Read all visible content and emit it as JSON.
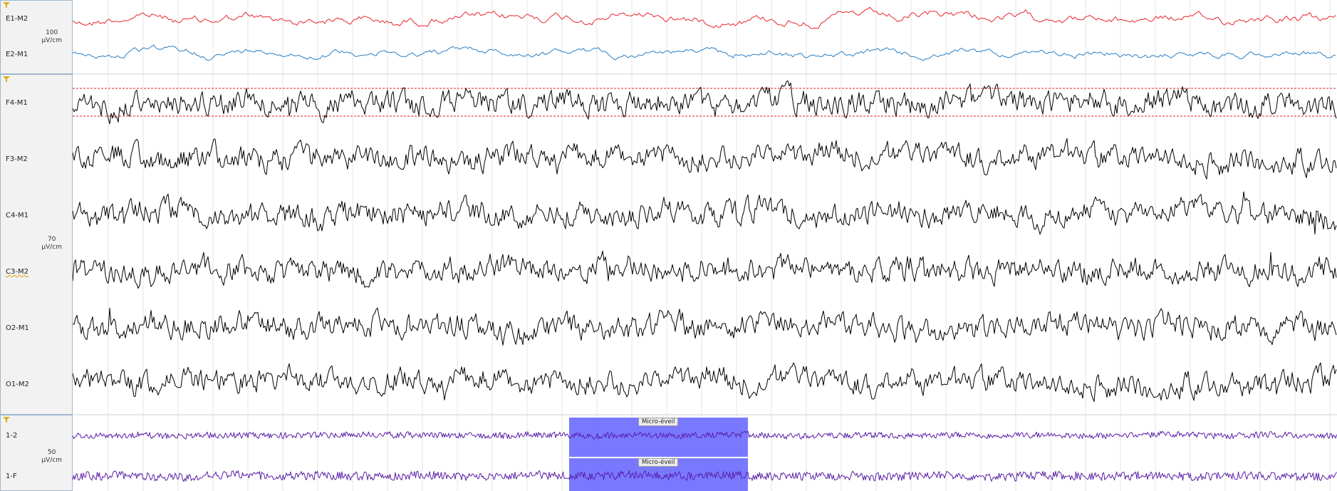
{
  "groups": [
    {
      "scale_value": "100",
      "scale_unit": "µV/cm"
    },
    {
      "scale_value": "70",
      "scale_unit": "µV/cm"
    },
    {
      "scale_value": "50",
      "scale_unit": "µV/cm"
    }
  ],
  "channels": [
    {
      "label": "E1-M2",
      "color": "#e8242c"
    },
    {
      "label": "E2-M1",
      "color": "#2b7ec2"
    },
    {
      "label": "F4-M1",
      "color": "#000000"
    },
    {
      "label": "F3-M2",
      "color": "#000000"
    },
    {
      "label": "C4-M1",
      "color": "#000000"
    },
    {
      "label": "C3-M2",
      "color": "#000000"
    },
    {
      "label": "O2-M1",
      "color": "#000000"
    },
    {
      "label": "O1-M2",
      "color": "#000000"
    },
    {
      "label": "1-2",
      "color": "#5a1fa8"
    },
    {
      "label": "1-F",
      "color": "#5a1fa8"
    }
  ],
  "events": [
    {
      "label": "Micro-éveil",
      "color": "#6a6aff"
    },
    {
      "label": "Micro-éveil",
      "color": "#6a6aff"
    }
  ],
  "threshold_color": "#e02020",
  "grid_color": "#e6e6e6",
  "icons": {
    "group_filter": "filter-icon",
    "channel_warning": "wavy-underline"
  }
}
